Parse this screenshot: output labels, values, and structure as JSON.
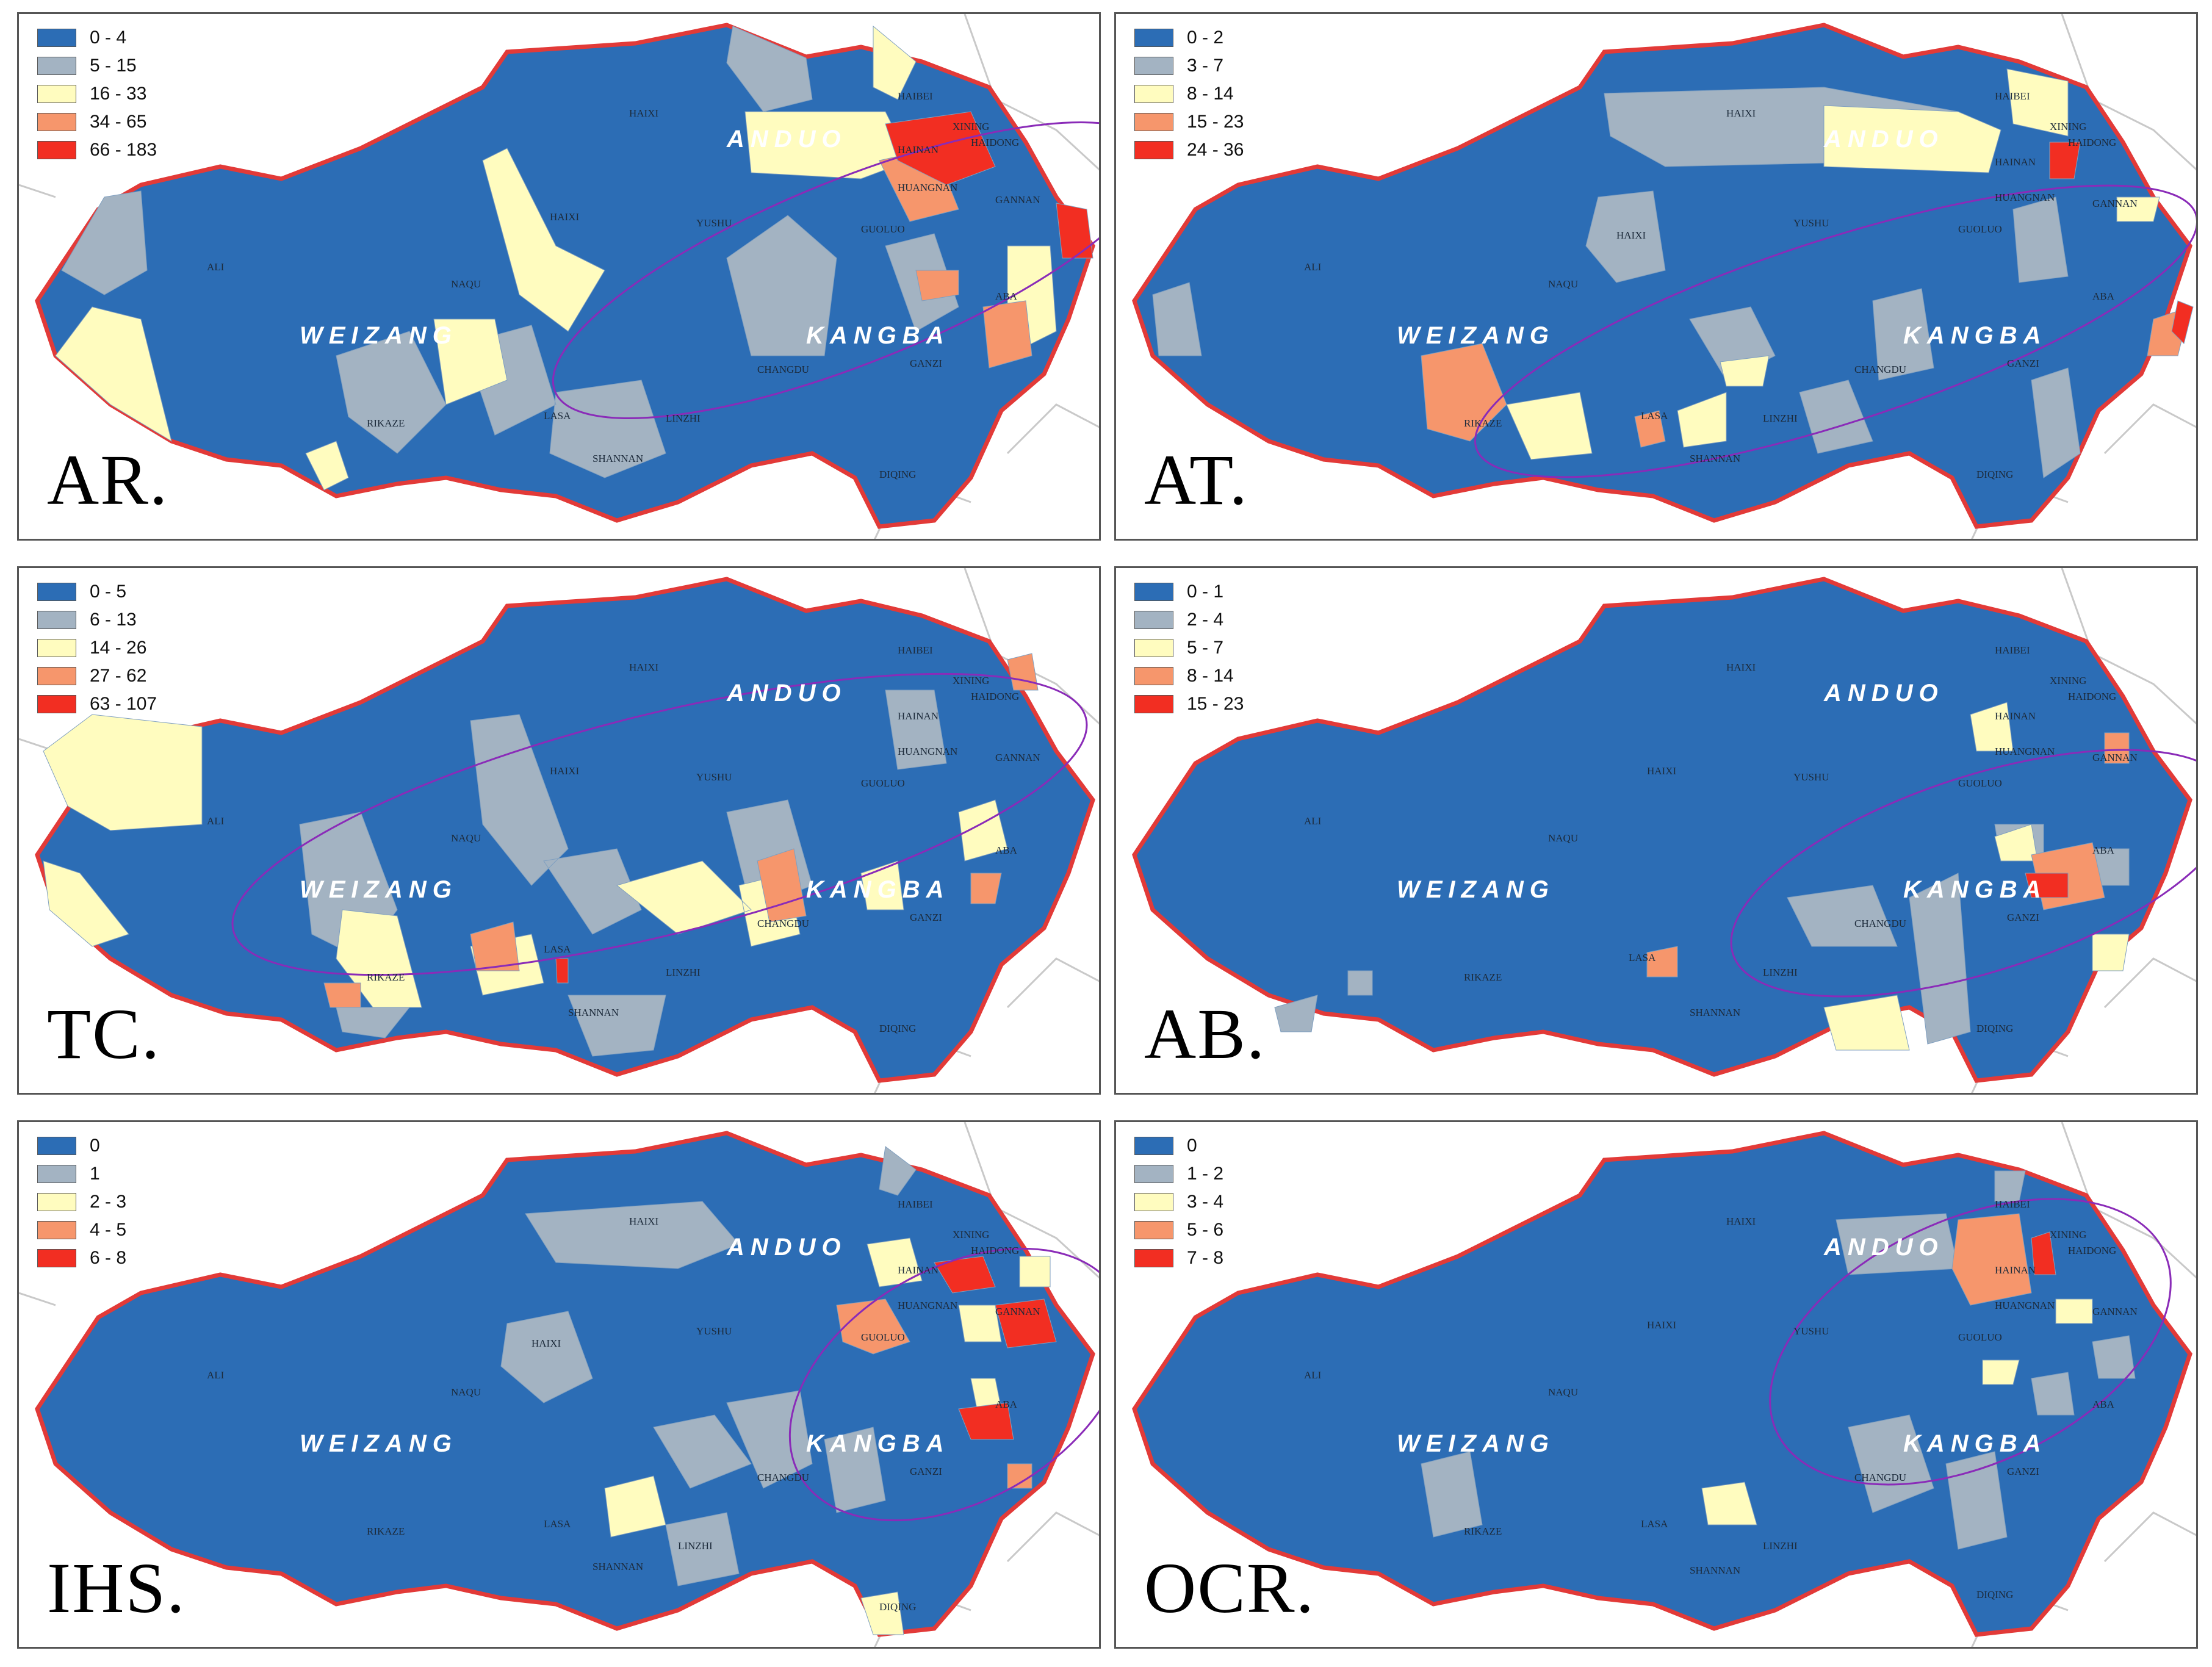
{
  "colors": {
    "class0": "#2c6db5",
    "class1": "#a3b3c2",
    "class2": "#fffcbf",
    "class3": "#f6966c",
    "class4": "#f22e22",
    "border": "#e23a38",
    "ellipse": "#8a2bb8"
  },
  "place_names": {
    "haibei": "HAIBEI",
    "haixi": "HAIXI",
    "xining": "XINING",
    "haidong": "HAIDONG",
    "hainan": "HAINAN",
    "huangnan": "HUANGNAN",
    "gannan": "GANNAN",
    "yushu": "YUSHU",
    "guoluo": "GUOLUO",
    "ali": "ALI",
    "naqu": "NAQU",
    "aba": "ABA",
    "changdu": "CHANGDU",
    "ganzi": "GANZI",
    "lasa": "LASA",
    "rikaze": "RIKAZE",
    "linzhi": "LINZHI",
    "shannan": "SHANNAN",
    "diqing": "DIQING"
  },
  "regions": {
    "anduo": "ANDUO",
    "weizang": "WEIZANG",
    "kangba": "KANGBA"
  },
  "panels": [
    {
      "title": "AR.",
      "legend": [
        "0 - 4",
        "5 - 15",
        "16 - 33",
        "34 - 65",
        "66 - 183"
      ]
    },
    {
      "title": "AT.",
      "legend": [
        "0 - 2",
        "3 - 7",
        "8 - 14",
        "15 - 23",
        "24 - 36"
      ]
    },
    {
      "title": "TC.",
      "legend": [
        "0 - 5",
        "6 - 13",
        "14 - 26",
        "27 - 62",
        "63 - 107"
      ]
    },
    {
      "title": "AB.",
      "legend": [
        "0 - 1",
        "2 - 4",
        "5 - 7",
        "8 - 14",
        "15 - 23"
      ]
    },
    {
      "title": "IHS.",
      "legend": [
        "0",
        "1",
        "2 - 3",
        "4 - 5",
        "6 - 8"
      ]
    },
    {
      "title": "OCR.",
      "legend": [
        "0",
        "1 - 2",
        "3 - 4",
        "5 - 6",
        "7 - 8"
      ]
    }
  ]
}
